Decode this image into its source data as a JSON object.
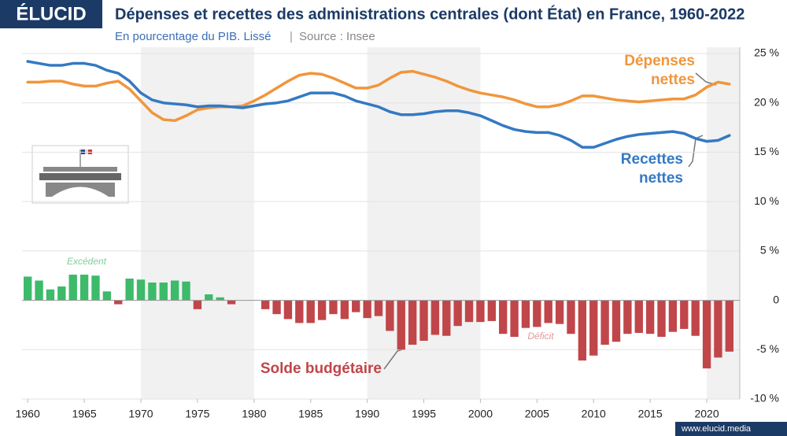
{
  "brand": "ÉLUCID",
  "footer": "www.elucid.media",
  "chart_data": {
    "type": "combo",
    "title": "Dépenses et recettes des administrations centrales (dont État) en France, 1960-2022",
    "subtitle": "En pourcentage du PIB. Lissé",
    "source": "Source : Insee",
    "x": [
      1960,
      1961,
      1962,
      1963,
      1964,
      1965,
      1966,
      1967,
      1968,
      1969,
      1970,
      1971,
      1972,
      1973,
      1974,
      1975,
      1976,
      1977,
      1978,
      1979,
      1980,
      1981,
      1982,
      1983,
      1984,
      1985,
      1986,
      1987,
      1988,
      1989,
      1990,
      1991,
      1992,
      1993,
      1994,
      1995,
      1996,
      1997,
      1998,
      1999,
      2000,
      2001,
      2002,
      2003,
      2004,
      2005,
      2006,
      2007,
      2008,
      2009,
      2010,
      2011,
      2012,
      2013,
      2014,
      2015,
      2016,
      2017,
      2018,
      2019,
      2020,
      2021,
      2022
    ],
    "series": [
      {
        "name": "Dépenses nettes",
        "type": "line",
        "color": "#f0963c",
        "values": [
          22.1,
          22.1,
          22.2,
          22.2,
          21.9,
          21.7,
          21.7,
          22.0,
          22.2,
          21.4,
          20.2,
          19.0,
          18.3,
          18.2,
          18.7,
          19.3,
          19.5,
          19.6,
          19.6,
          19.7,
          20.2,
          20.8,
          21.5,
          22.2,
          22.8,
          23.0,
          22.9,
          22.5,
          22.0,
          21.5,
          21.5,
          21.8,
          22.5,
          23.1,
          23.2,
          22.9,
          22.6,
          22.2,
          21.7,
          21.3,
          21.0,
          20.8,
          20.6,
          20.3,
          19.9,
          19.6,
          19.6,
          19.8,
          20.2,
          20.7,
          20.7,
          20.5,
          20.3,
          20.2,
          20.1,
          20.2,
          20.3,
          20.4,
          20.4,
          20.8,
          21.6,
          22.1,
          21.9
        ]
      },
      {
        "name": "Recettes nettes",
        "type": "line",
        "color": "#3479c3",
        "values": [
          24.2,
          24.0,
          23.8,
          23.8,
          24.0,
          24.0,
          23.8,
          23.3,
          23.0,
          22.2,
          21.0,
          20.3,
          20.0,
          19.9,
          19.8,
          19.6,
          19.7,
          19.7,
          19.6,
          19.5,
          19.7,
          19.9,
          20.0,
          20.2,
          20.6,
          21.0,
          21.0,
          21.0,
          20.7,
          20.2,
          19.9,
          19.6,
          19.1,
          18.8,
          18.8,
          18.9,
          19.1,
          19.2,
          19.2,
          19.0,
          18.7,
          18.2,
          17.7,
          17.3,
          17.1,
          17.0,
          17.0,
          16.7,
          16.2,
          15.5,
          15.5,
          15.9,
          16.3,
          16.6,
          16.8,
          16.9,
          17.0,
          17.1,
          16.9,
          16.4,
          16.1,
          16.2,
          16.7
        ]
      },
      {
        "name": "Solde budgétaire",
        "type": "bar",
        "color": "#c0464a",
        "positive_color": "#3dba6a",
        "values": [
          2.4,
          2.0,
          1.1,
          1.4,
          2.6,
          2.6,
          2.5,
          0.9,
          -0.4,
          2.2,
          2.1,
          1.8,
          1.8,
          2.0,
          1.9,
          -0.9,
          0.6,
          0.3,
          -0.4,
          0.0,
          0.0,
          -0.9,
          -1.4,
          -1.9,
          -2.3,
          -2.3,
          -2.0,
          -1.4,
          -1.9,
          -1.2,
          -1.8,
          -1.6,
          -3.1,
          -5.0,
          -4.5,
          -4.1,
          -3.5,
          -3.6,
          -2.6,
          -2.2,
          -2.2,
          -2.1,
          -3.4,
          -3.7,
          -2.8,
          -2.7,
          -2.3,
          -2.4,
          -3.4,
          -6.1,
          -5.6,
          -4.5,
          -4.2,
          -3.4,
          -3.3,
          -3.4,
          -3.7,
          -3.2,
          -2.9,
          -3.6,
          -6.9,
          -5.8,
          -5.2
        ]
      }
    ],
    "annotations": [
      "Excédent",
      "Déficit"
    ],
    "xlim": [
      1959.5,
      2022.5
    ],
    "xticks": [
      1960,
      1965,
      1970,
      1975,
      1980,
      1985,
      1990,
      1995,
      2000,
      2005,
      2010,
      2015,
      2020
    ],
    "ylim": [
      -10,
      25
    ],
    "yticks": [
      {
        "value": -10,
        "label": "-10 %"
      },
      {
        "value": -5,
        "label": "-5 %"
      },
      0,
      {
        "value": 5,
        "label": "5 %"
      },
      {
        "value": 10,
        "label": "10 %"
      },
      {
        "value": 15,
        "label": "15 %"
      },
      {
        "value": 20,
        "label": "20 %"
      },
      {
        "value": 25,
        "label": "25 %"
      }
    ],
    "grid": true
  }
}
